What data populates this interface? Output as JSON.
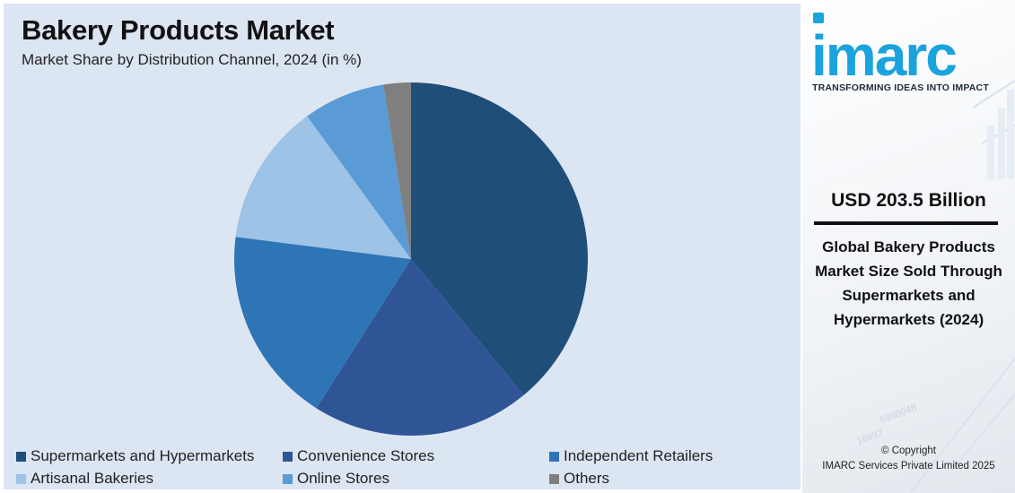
{
  "header": {
    "title": "Bakery Products Market",
    "subtitle": "Market Share by Distribution Channel, 2024 (in %)"
  },
  "chart_data": {
    "type": "pie",
    "title": "Bakery Products Market",
    "subtitle": "Market Share by Distribution Channel, 2024 (in %)",
    "categories": [
      "Supermarkets and Hypermarkets",
      "Convenience Stores",
      "Independent Retailers",
      "Artisanal Bakeries",
      "Online Stores",
      "Others"
    ],
    "values": [
      39,
      20,
      18,
      13,
      7.5,
      2.5
    ],
    "colors": [
      "#1f4e79",
      "#2f5597",
      "#2e75b6",
      "#9dc3e6",
      "#5b9bd5",
      "#7f7f7f"
    ],
    "legend_position": "bottom"
  },
  "side": {
    "logo_text": "imarc",
    "tagline": "TRANSFORMING IDEAS INTO IMPACT",
    "stat_value": "USD 203.5 Billion",
    "stat_description": "Global Bakery Products Market Size Sold Through Supermarkets and Hypermarkets (2024)",
    "copyright_line1": "© Copyright",
    "copyright_line2": "IMARC Services Private Limited 2025",
    "brand_color": "#1aa3dd"
  }
}
